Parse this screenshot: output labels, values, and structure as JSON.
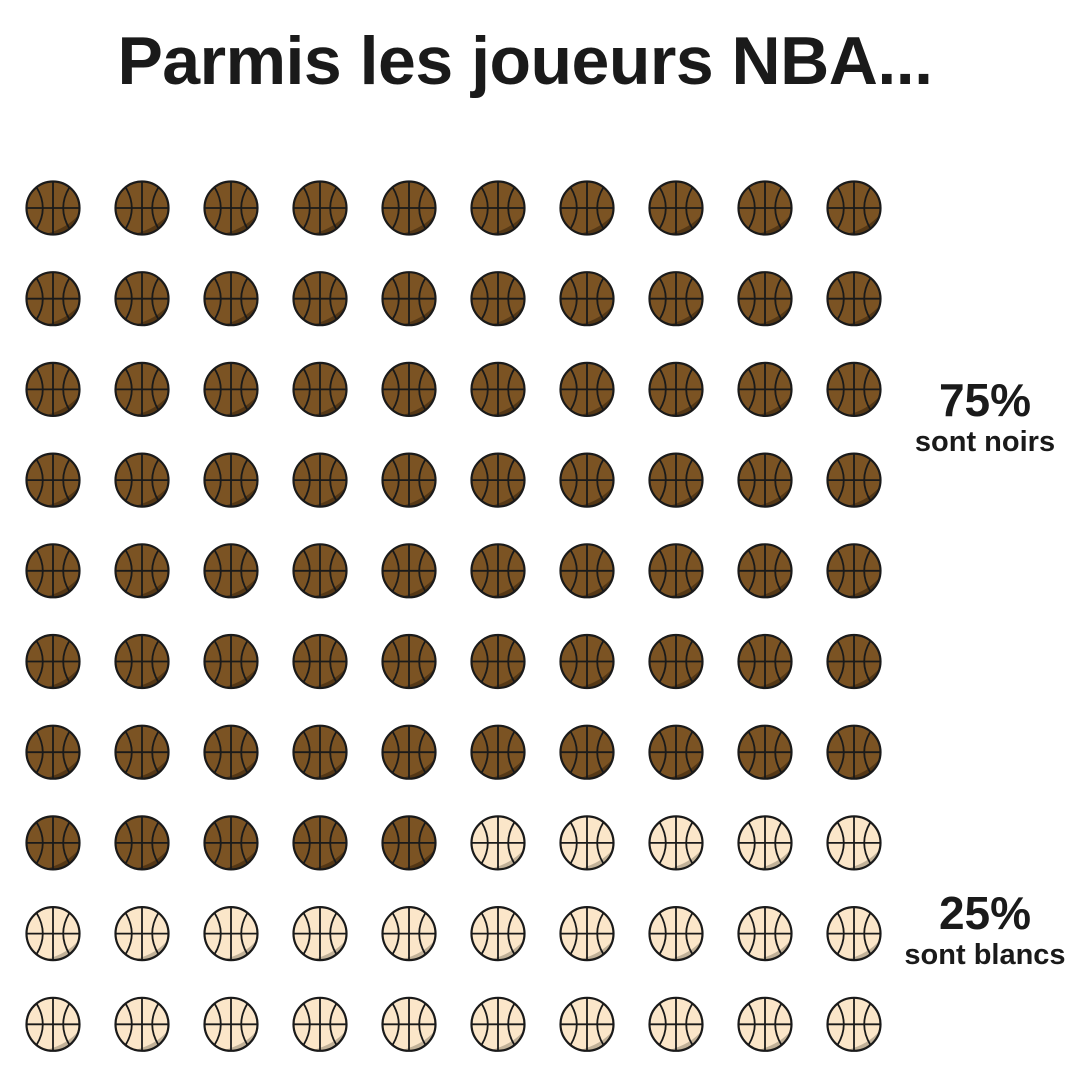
{
  "title": "Parmis les joueurs NBA...",
  "chart_data": {
    "type": "waffle",
    "grid": {
      "columns": 10,
      "rows": 10
    },
    "total": 100,
    "series": [
      {
        "name": "sont noirs",
        "value": 75,
        "label": "75%",
        "fill": "#7b5323",
        "shade": "#4e3313"
      },
      {
        "name": "sont blancs",
        "value": 25,
        "label": "25%",
        "fill": "#fbe6c9",
        "shade": "#b7a890"
      }
    ],
    "icon": "basketball-icon",
    "stroke_color": "#1a1a1a"
  }
}
